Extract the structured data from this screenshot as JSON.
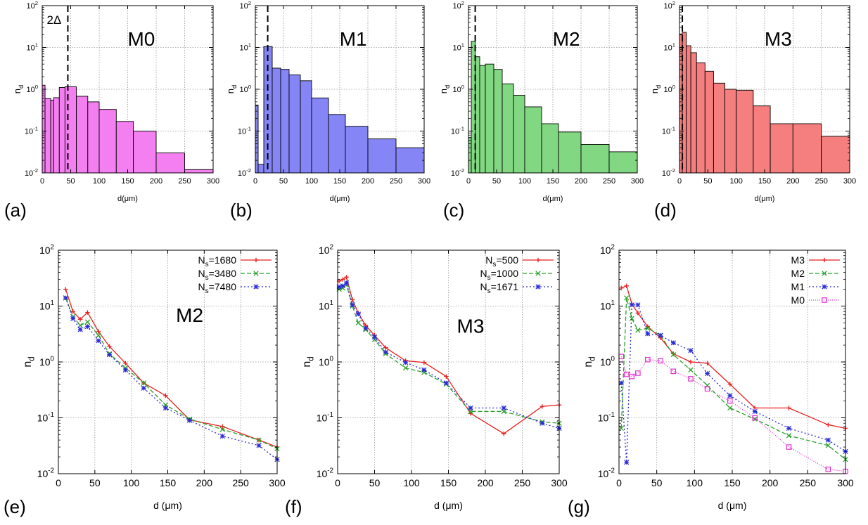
{
  "chart_data": [
    {
      "id": "a",
      "type": "bar",
      "panel_label": "(a)",
      "title": "M0",
      "xlabel": "d(μm)",
      "ylabel": "n_d",
      "yscale": "log",
      "xlim": [
        0,
        300
      ],
      "ylim": [
        0.01,
        100
      ],
      "xticks": [
        0,
        50,
        100,
        150,
        200,
        250,
        300
      ],
      "grid": true,
      "color": "#f47ff0",
      "marker_line": {
        "x": 45,
        "label": "2Δ"
      },
      "bins": [
        {
          "x0": 0,
          "x1": 5,
          "y": 1.25
        },
        {
          "x0": 5,
          "x1": 15,
          "y": 0.6
        },
        {
          "x0": 15,
          "x1": 20,
          "y": 0.55
        },
        {
          "x0": 20,
          "x1": 30,
          "y": 0.63
        },
        {
          "x0": 30,
          "x1": 40,
          "y": 1.1
        },
        {
          "x0": 40,
          "x1": 60,
          "y": 1.15
        },
        {
          "x0": 60,
          "x1": 80,
          "y": 0.68
        },
        {
          "x0": 80,
          "x1": 100,
          "y": 0.5
        },
        {
          "x0": 100,
          "x1": 130,
          "y": 0.33
        },
        {
          "x0": 130,
          "x1": 160,
          "y": 0.17
        },
        {
          "x0": 160,
          "x1": 200,
          "y": 0.1
        },
        {
          "x0": 200,
          "x1": 250,
          "y": 0.03
        },
        {
          "x0": 250,
          "x1": 300,
          "y": 0.012
        }
      ]
    },
    {
      "id": "b",
      "type": "bar",
      "panel_label": "(b)",
      "title": "M1",
      "xlabel": "d(μm)",
      "ylabel": "n_d",
      "yscale": "log",
      "xlim": [
        0,
        300
      ],
      "ylim": [
        0.01,
        100
      ],
      "xticks": [
        0,
        50,
        100,
        150,
        200,
        250,
        300
      ],
      "grid": true,
      "color": "#8585f6",
      "marker_line": {
        "x": 22,
        "label": ""
      },
      "bins": [
        {
          "x0": 0,
          "x1": 5,
          "y": 0.42
        },
        {
          "x0": 5,
          "x1": 15,
          "y": 0.016
        },
        {
          "x0": 15,
          "x1": 30,
          "y": 10.5
        },
        {
          "x0": 30,
          "x1": 45,
          "y": 3.2
        },
        {
          "x0": 45,
          "x1": 60,
          "y": 3.0
        },
        {
          "x0": 60,
          "x1": 80,
          "y": 2.2
        },
        {
          "x0": 80,
          "x1": 100,
          "y": 1.6
        },
        {
          "x0": 100,
          "x1": 130,
          "y": 0.62
        },
        {
          "x0": 130,
          "x1": 160,
          "y": 0.25
        },
        {
          "x0": 160,
          "x1": 200,
          "y": 0.13
        },
        {
          "x0": 200,
          "x1": 250,
          "y": 0.065
        },
        {
          "x0": 250,
          "x1": 300,
          "y": 0.04
        }
      ]
    },
    {
      "id": "c",
      "type": "bar",
      "panel_label": "(c)",
      "title": "M2",
      "xlabel": "d(μm)",
      "ylabel": "n_d",
      "yscale": "log",
      "xlim": [
        0,
        300
      ],
      "ylim": [
        0.01,
        100
      ],
      "xticks": [
        0,
        50,
        100,
        150,
        200,
        250,
        300
      ],
      "grid": true,
      "color": "#82d882",
      "marker_line": {
        "x": 12,
        "label": ""
      },
      "bins": [
        {
          "x0": 0,
          "x1": 5,
          "y": 0.07
        },
        {
          "x0": 5,
          "x1": 12,
          "y": 14
        },
        {
          "x0": 12,
          "x1": 20,
          "y": 6.0
        },
        {
          "x0": 20,
          "x1": 30,
          "y": 3.7
        },
        {
          "x0": 30,
          "x1": 45,
          "y": 4.0
        },
        {
          "x0": 45,
          "x1": 60,
          "y": 3.0
        },
        {
          "x0": 60,
          "x1": 80,
          "y": 1.35
        },
        {
          "x0": 80,
          "x1": 100,
          "y": 0.72
        },
        {
          "x0": 100,
          "x1": 130,
          "y": 0.38
        },
        {
          "x0": 130,
          "x1": 160,
          "y": 0.15
        },
        {
          "x0": 160,
          "x1": 200,
          "y": 0.095
        },
        {
          "x0": 200,
          "x1": 250,
          "y": 0.048
        },
        {
          "x0": 250,
          "x1": 300,
          "y": 0.032
        }
      ]
    },
    {
      "id": "d",
      "type": "bar",
      "panel_label": "(d)",
      "title": "M3",
      "xlabel": "d(μm)",
      "ylabel": "n_d",
      "yscale": "log",
      "xlim": [
        0,
        300
      ],
      "ylim": [
        0.01,
        100
      ],
      "xticks": [
        0,
        50,
        100,
        150,
        200,
        250,
        300
      ],
      "grid": true,
      "color": "#f57f7f",
      "marker_line": {
        "x": 5,
        "label": ""
      },
      "bins": [
        {
          "x0": 0,
          "x1": 5,
          "y": 21
        },
        {
          "x0": 5,
          "x1": 12,
          "y": 23
        },
        {
          "x0": 12,
          "x1": 20,
          "y": 11
        },
        {
          "x0": 20,
          "x1": 30,
          "y": 7.5
        },
        {
          "x0": 30,
          "x1": 45,
          "y": 4.3
        },
        {
          "x0": 45,
          "x1": 60,
          "y": 2.7
        },
        {
          "x0": 60,
          "x1": 80,
          "y": 1.4
        },
        {
          "x0": 80,
          "x1": 100,
          "y": 1.0
        },
        {
          "x0": 100,
          "x1": 130,
          "y": 0.95
        },
        {
          "x0": 130,
          "x1": 160,
          "y": 0.4
        },
        {
          "x0": 160,
          "x1": 200,
          "y": 0.15
        },
        {
          "x0": 200,
          "x1": 250,
          "y": 0.15
        },
        {
          "x0": 250,
          "x1": 300,
          "y": 0.075
        }
      ]
    },
    {
      "id": "e",
      "type": "line",
      "panel_label": "(e)",
      "title": "M2",
      "xlabel": "d (μm)",
      "ylabel": "n_d",
      "yscale": "log",
      "xlim": [
        0,
        300
      ],
      "ylim": [
        0.01,
        100
      ],
      "xticks": [
        0,
        50,
        100,
        150,
        200,
        250,
        300
      ],
      "grid": true,
      "legend_position": "top-right",
      "series": [
        {
          "name": "N_s=1680",
          "color": "#e8201e",
          "dash": "",
          "marker": "plus",
          "x": [
            10,
            20,
            30,
            40,
            55,
            70,
            92,
            117,
            147,
            180,
            225,
            275,
            300
          ],
          "y": [
            20,
            8.0,
            5.8,
            7.7,
            3.5,
            1.9,
            0.95,
            0.42,
            0.25,
            0.092,
            0.07,
            0.04,
            0.03
          ]
        },
        {
          "name": "N_s=3480",
          "color": "#2aa02a",
          "dash": "6,3",
          "marker": "x",
          "x": [
            10,
            20,
            30,
            40,
            55,
            70,
            92,
            117,
            147,
            180,
            225,
            275,
            300
          ],
          "y": [
            14,
            6.5,
            4.5,
            5.2,
            3.0,
            1.4,
            0.78,
            0.42,
            0.17,
            0.095,
            0.062,
            0.04,
            0.028
          ]
        },
        {
          "name": "N_s=7480",
          "color": "#2a2ad6",
          "dash": "2,3",
          "marker": "star",
          "x": [
            10,
            20,
            30,
            40,
            55,
            70,
            92,
            117,
            147,
            180,
            225,
            275,
            300
          ],
          "y": [
            14,
            6.0,
            3.8,
            4.3,
            2.4,
            1.35,
            0.72,
            0.34,
            0.15,
            0.09,
            0.047,
            0.032,
            0.018
          ]
        }
      ]
    },
    {
      "id": "f",
      "type": "line",
      "panel_label": "(f)",
      "title": "M3",
      "xlabel": "d (μm)",
      "ylabel": "n_d",
      "yscale": "log",
      "xlim": [
        0,
        300
      ],
      "ylim": [
        0.01,
        100
      ],
      "xticks": [
        0,
        50,
        100,
        150,
        200,
        250,
        300
      ],
      "grid": true,
      "legend_position": "top-right",
      "series": [
        {
          "name": "N_s=500",
          "color": "#e8201e",
          "dash": "",
          "marker": "plus",
          "x": [
            2,
            7,
            12,
            20,
            28,
            38,
            50,
            65,
            92,
            117,
            147,
            180,
            225,
            277,
            300
          ],
          "y": [
            28,
            30,
            33,
            13,
            7.5,
            4.5,
            3.0,
            1.8,
            1.05,
            0.98,
            0.55,
            0.12,
            0.052,
            0.16,
            0.17
          ]
        },
        {
          "name": "N_s=1000",
          "color": "#2aa02a",
          "dash": "6,3",
          "marker": "x",
          "x": [
            2,
            7,
            12,
            20,
            28,
            38,
            50,
            65,
            92,
            117,
            147,
            180,
            225,
            277,
            300
          ],
          "y": [
            20,
            21,
            24,
            10,
            5.0,
            3.8,
            2.5,
            1.4,
            0.78,
            0.65,
            0.4,
            0.13,
            0.13,
            0.085,
            0.08
          ]
        },
        {
          "name": "N_s=1671",
          "color": "#2a2ad6",
          "dash": "2,3",
          "marker": "star",
          "x": [
            2,
            7,
            12,
            20,
            28,
            38,
            50,
            65,
            92,
            117,
            147,
            180,
            225,
            277,
            300
          ],
          "y": [
            22,
            23,
            26,
            10.5,
            7.2,
            4.0,
            2.8,
            1.5,
            0.98,
            0.72,
            0.42,
            0.15,
            0.15,
            0.08,
            0.065
          ]
        }
      ]
    },
    {
      "id": "g",
      "type": "line",
      "panel_label": "(g)",
      "title": "",
      "xlabel": "d (μm)",
      "ylabel": "n_d",
      "yscale": "log",
      "xlim": [
        0,
        300
      ],
      "ylim": [
        0.01,
        100
      ],
      "xticks": [
        0,
        50,
        100,
        150,
        200,
        250,
        300
      ],
      "grid": true,
      "legend_position": "top-right",
      "series": [
        {
          "name": "M3",
          "color": "#e8201e",
          "dash": "",
          "marker": "plus",
          "x": [
            3,
            10,
            17,
            25,
            38,
            55,
            72,
            95,
            117,
            147,
            180,
            225,
            277,
            300
          ],
          "y": [
            21,
            23,
            11,
            7.5,
            4.3,
            2.7,
            1.4,
            1.0,
            0.95,
            0.4,
            0.15,
            0.15,
            0.075,
            0.065
          ]
        },
        {
          "name": "M2",
          "color": "#2aa02a",
          "dash": "6,3",
          "marker": "x",
          "x": [
            3,
            10,
            17,
            25,
            38,
            55,
            72,
            95,
            117,
            147,
            180,
            225,
            277,
            300
          ],
          "y": [
            0.065,
            14,
            6.0,
            3.7,
            4.0,
            3.0,
            1.35,
            0.72,
            0.38,
            0.15,
            0.095,
            0.048,
            0.032,
            0.018
          ]
        },
        {
          "name": "M1",
          "color": "#2a2ad6",
          "dash": "2,3",
          "marker": "star",
          "x": [
            3,
            10,
            17,
            25,
            38,
            55,
            72,
            95,
            117,
            147,
            180,
            225,
            277,
            300
          ],
          "y": [
            0.42,
            0.016,
            10.5,
            10.5,
            3.2,
            3.0,
            2.2,
            1.6,
            0.62,
            0.25,
            0.13,
            0.065,
            0.04,
            0.025
          ]
        },
        {
          "name": "M0",
          "color": "#e030d0",
          "dash": "1,2",
          "marker": "square",
          "x": [
            3,
            10,
            17,
            25,
            38,
            55,
            72,
            95,
            117,
            147,
            180,
            225,
            277,
            300
          ],
          "y": [
            1.25,
            0.6,
            0.55,
            0.63,
            1.1,
            1.05,
            0.68,
            0.5,
            0.33,
            0.2,
            0.1,
            0.03,
            0.012,
            0.011
          ]
        }
      ]
    }
  ]
}
